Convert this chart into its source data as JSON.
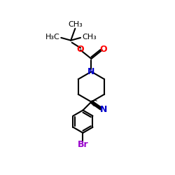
{
  "background_color": "#ffffff",
  "atom_colors": {
    "C": "#000000",
    "N": "#0000cc",
    "O": "#ff0000",
    "Br": "#9900cc",
    "default": "#000000"
  },
  "bond_lw": 1.5,
  "figsize": [
    2.5,
    2.5
  ],
  "dpi": 100,
  "xlim": [
    0,
    250
  ],
  "ylim": [
    0,
    250
  ]
}
